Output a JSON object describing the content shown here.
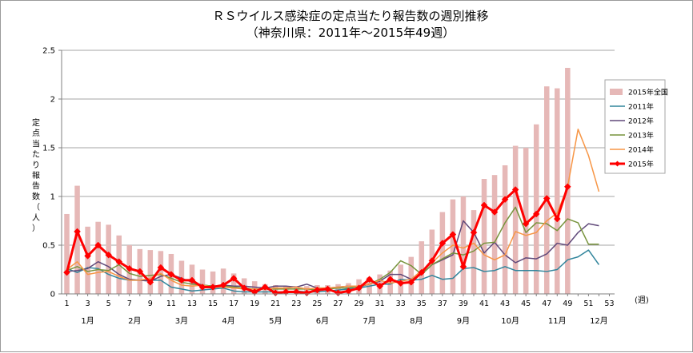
{
  "chart_data": {
    "type": "bar+line",
    "title": "ＲＳウイルス感染症の定点当たり報告数の週別推移",
    "subtitle": "（神奈川県：2011年〜2015年49週）",
    "ylabel": "定点当たり報告数（人）",
    "xunit": "(週)",
    "ylim": [
      0,
      2.5
    ],
    "yticks": [
      0,
      0.5,
      1,
      1.5,
      2,
      2.5
    ],
    "ytick_labels": [
      "0",
      "0.5",
      "1",
      "1.5",
      "2",
      "2.5"
    ],
    "xticks": [
      1,
      3,
      5,
      7,
      9,
      11,
      13,
      15,
      17,
      19,
      21,
      23,
      25,
      27,
      29,
      31,
      33,
      35,
      37,
      39,
      41,
      43,
      45,
      47,
      49,
      51,
      53
    ],
    "xtick_labels": [
      "1",
      "3",
      "5",
      "7",
      "9",
      "11",
      "13",
      "15",
      "17",
      "19",
      "21",
      "23",
      "25",
      "27",
      "29",
      "31",
      "33",
      "35",
      "37",
      "39",
      "41",
      "43",
      "45",
      "47",
      "49",
      "51",
      "53"
    ],
    "months": [
      {
        "label": "1月",
        "week": 3
      },
      {
        "label": "2月",
        "week": 7.5
      },
      {
        "label": "3月",
        "week": 12
      },
      {
        "label": "4月",
        "week": 16.5
      },
      {
        "label": "5月",
        "week": 21
      },
      {
        "label": "6月",
        "week": 25.5
      },
      {
        "label": "7月",
        "week": 30
      },
      {
        "label": "8月",
        "week": 34.5
      },
      {
        "label": "9月",
        "week": 39
      },
      {
        "label": "10月",
        "week": 43.5
      },
      {
        "label": "11月",
        "week": 48
      },
      {
        "label": "12月",
        "week": 52
      }
    ],
    "grid": true,
    "legend_position": "right",
    "bar_series": {
      "name": "2015年全国",
      "color": "#e6b8b7",
      "values": [
        0.82,
        1.11,
        0.69,
        0.74,
        0.71,
        0.6,
        0.5,
        0.46,
        0.45,
        0.44,
        0.41,
        0.34,
        0.3,
        0.25,
        0.23,
        0.26,
        0.21,
        0.16,
        0.13,
        0.1,
        0.09,
        0.08,
        0.08,
        0.08,
        0.09,
        0.09,
        0.1,
        0.11,
        0.15,
        0.17,
        0.2,
        0.24,
        0.3,
        0.38,
        0.54,
        0.66,
        0.84,
        0.97,
        1.0,
        0.86,
        1.18,
        1.22,
        1.32,
        1.52,
        1.5,
        1.74,
        2.13,
        2.11,
        2.32
      ]
    },
    "series": [
      {
        "name": "2011年",
        "color": "#31859c",
        "width": 1.5,
        "values": [
          0.26,
          0.22,
          0.27,
          0.26,
          0.2,
          0.16,
          0.14,
          0.14,
          0.14,
          0.14,
          0.07,
          0.05,
          0.03,
          0.04,
          0.05,
          0.06,
          0.03,
          0.02,
          0.02,
          0.02,
          0.02,
          0.02,
          0.03,
          0.02,
          0.02,
          0.03,
          0.04,
          0.05,
          0.06,
          0.08,
          0.1,
          0.1,
          0.15,
          0.14,
          0.15,
          0.19,
          0.15,
          0.16,
          0.26,
          0.27,
          0.23,
          0.24,
          0.28,
          0.24,
          0.24,
          0.24,
          0.23,
          0.25,
          0.35,
          0.38,
          0.45,
          0.3
        ]
      },
      {
        "name": "2012年",
        "color": "#60497a",
        "width": 1.5,
        "values": [
          0.23,
          0.24,
          0.26,
          0.33,
          0.28,
          0.2,
          0.15,
          0.14,
          0.13,
          0.18,
          0.2,
          0.16,
          0.12,
          0.09,
          0.08,
          0.09,
          0.08,
          0.08,
          0.07,
          0.06,
          0.08,
          0.08,
          0.07,
          0.1,
          0.06,
          0.06,
          0.07,
          0.08,
          0.07,
          0.1,
          0.13,
          0.2,
          0.2,
          0.15,
          0.2,
          0.3,
          0.35,
          0.4,
          0.75,
          0.63,
          0.42,
          0.53,
          0.4,
          0.32,
          0.37,
          0.36,
          0.41,
          0.52,
          0.5,
          0.63,
          0.72,
          0.7
        ]
      },
      {
        "name": "2013年",
        "color": "#77933c",
        "width": 1.5,
        "values": [
          0.24,
          0.28,
          0.23,
          0.25,
          0.24,
          0.3,
          0.21,
          0.18,
          0.19,
          0.2,
          0.16,
          0.12,
          0.1,
          0.09,
          0.08,
          0.08,
          0.07,
          0.06,
          0.05,
          0.05,
          0.05,
          0.05,
          0.05,
          0.05,
          0.04,
          0.05,
          0.06,
          0.06,
          0.08,
          0.1,
          0.15,
          0.22,
          0.34,
          0.29,
          0.2,
          0.3,
          0.36,
          0.42,
          0.4,
          0.44,
          0.52,
          0.53,
          0.73,
          0.89,
          0.63,
          0.73,
          0.72,
          0.65,
          0.77,
          0.73,
          0.51,
          0.51
        ]
      },
      {
        "name": "2014年",
        "color": "#f79646",
        "width": 1.5,
        "values": [
          0.25,
          0.33,
          0.2,
          0.22,
          0.23,
          0.18,
          0.14,
          0.14,
          0.16,
          0.21,
          0.14,
          0.09,
          0.08,
          0.09,
          0.07,
          0.07,
          0.06,
          0.05,
          0.05,
          0.05,
          0.06,
          0.06,
          0.07,
          0.05,
          0.06,
          0.06,
          0.07,
          0.08,
          0.08,
          0.1,
          0.14,
          0.11,
          0.13,
          0.15,
          0.24,
          0.32,
          0.42,
          0.5,
          0.47,
          0.52,
          0.4,
          0.35,
          0.4,
          0.64,
          0.6,
          0.63,
          0.75,
          0.83,
          1.1,
          1.69,
          1.42,
          1.05
        ]
      },
      {
        "name": "2015年",
        "color": "#ff0000",
        "width": 3,
        "marker": "diamond",
        "values": [
          0.22,
          0.64,
          0.39,
          0.5,
          0.4,
          0.33,
          0.26,
          0.23,
          0.12,
          0.27,
          0.2,
          0.14,
          0.14,
          0.07,
          0.07,
          0.09,
          0.16,
          0.06,
          0.02,
          0.07,
          0.01,
          0.02,
          0.02,
          0.01,
          0.04,
          0.05,
          0.01,
          0.03,
          0.06,
          0.15,
          0.08,
          0.15,
          0.11,
          0.12,
          0.22,
          0.34,
          0.52,
          0.61,
          0.28,
          0.63,
          0.91,
          0.84,
          0.97,
          1.07,
          0.72,
          0.82,
          0.98,
          0.77,
          1.1
        ]
      }
    ],
    "legend_order": [
      "2015年全国",
      "2011年",
      "2012年",
      "2013年",
      "2014年",
      "2015年"
    ]
  }
}
